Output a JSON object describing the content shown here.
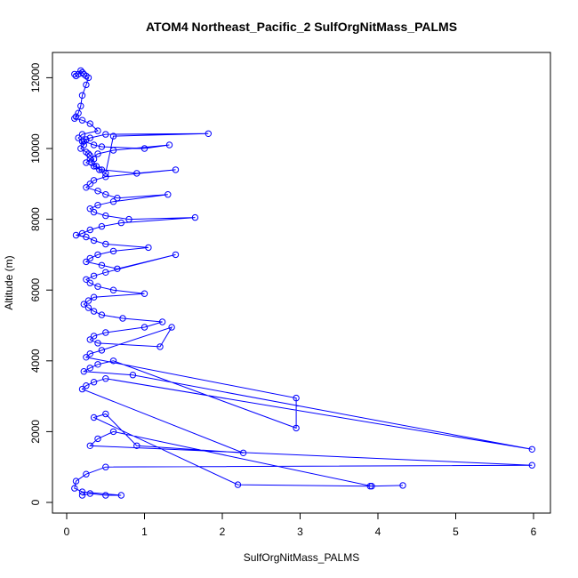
{
  "chart_data": {
    "type": "line",
    "title": "ATOM4 Northeast_Pacific_2 SulfOrgNitMass_PALMS",
    "xlabel": "SulfOrgNitMass_PALMS",
    "ylabel": "Altitude (m)",
    "xlim": [
      0,
      6
    ],
    "ylim": [
      0,
      12500
    ],
    "xticks": [
      0,
      1,
      2,
      3,
      4,
      5,
      6
    ],
    "yticks": [
      0,
      2000,
      4000,
      6000,
      8000,
      10000,
      12000
    ],
    "grid": false,
    "color": "#0000ff",
    "marker": "open-circle",
    "series": [
      {
        "x": [
          0.1,
          0.12,
          0.15,
          0.18,
          0.2,
          0.22,
          0.25,
          0.28,
          0.25,
          0.2,
          0.18,
          0.15,
          0.12,
          0.1,
          0.2,
          0.3,
          0.4,
          0.2,
          0.15,
          0.2,
          0.22,
          0.18,
          0.25,
          0.28,
          0.3,
          0.35,
          0.32,
          0.38,
          0.42,
          0.5,
          0.6,
          1.82,
          0.5,
          0.3,
          0.25,
          0.22,
          0.35,
          0.45,
          1.0,
          1.32,
          0.6,
          0.4,
          0.3,
          0.25,
          0.35,
          0.45,
          0.9,
          1.4,
          0.5,
          0.35,
          0.3,
          0.25,
          0.4,
          0.5,
          0.65,
          1.3,
          0.6,
          0.4,
          0.3,
          0.35,
          0.5,
          0.8,
          1.65,
          0.7,
          0.45,
          0.3,
          0.2,
          0.12,
          0.25,
          0.35,
          0.5,
          1.05,
          0.6,
          0.4,
          0.3,
          0.25,
          0.45,
          0.65,
          1.4,
          0.5,
          0.35,
          0.25,
          0.3,
          0.4,
          0.6,
          1.0,
          0.35,
          0.28,
          0.22,
          0.28,
          0.35,
          0.45,
          0.72,
          1.23,
          1.0,
          0.5,
          0.35,
          0.3,
          0.4,
          1.2,
          1.35,
          0.45,
          0.3,
          0.25,
          2.95,
          2.95,
          0.6,
          0.4,
          0.3,
          0.22,
          0.85,
          5.98,
          0.5,
          0.35,
          0.25,
          0.2,
          2.27,
          0.9,
          0.5,
          0.35,
          2.2,
          3.9,
          4.32,
          3.92,
          0.6,
          0.4,
          0.3,
          5.98,
          0.5,
          0.25,
          0.12,
          0.1,
          0.2,
          0.7,
          0.5,
          0.3,
          0.2
        ],
        "y": [
          12100,
          12050,
          12100,
          12200,
          12150,
          12100,
          12050,
          12000,
          11800,
          11500,
          11200,
          11000,
          10900,
          10850,
          10800,
          10700,
          10500,
          10400,
          10300,
          10200,
          10100,
          10000,
          9900,
          9850,
          9800,
          9700,
          9600,
          9500,
          9400,
          9300,
          10350,
          10420,
          10400,
          10300,
          10250,
          10200,
          10100,
          10050,
          10000,
          10100,
          9950,
          9850,
          9700,
          9600,
          9500,
          9400,
          9300,
          9400,
          9200,
          9100,
          9000,
          8900,
          8800,
          8700,
          8600,
          8700,
          8500,
          8400,
          8300,
          8200,
          8100,
          8000,
          8050,
          7900,
          7800,
          7700,
          7600,
          7550,
          7500,
          7400,
          7300,
          7200,
          7100,
          7000,
          6900,
          6800,
          6700,
          6600,
          7000,
          6500,
          6400,
          6300,
          6200,
          6100,
          6000,
          5900,
          5800,
          5700,
          5600,
          5500,
          5400,
          5300,
          5200,
          5100,
          4950,
          4800,
          4700,
          4600,
          4500,
          4400,
          4950,
          4300,
          4200,
          4100,
          2950,
          2100,
          4000,
          3900,
          3800,
          3700,
          3600,
          1500,
          3500,
          3400,
          3300,
          3200,
          1400,
          1600,
          2500,
          2400,
          500,
          460,
          480,
          460,
          2000,
          1800,
          1600,
          1050,
          1000,
          800,
          600,
          400,
          300,
          200,
          200,
          250,
          200
        ]
      }
    ]
  }
}
